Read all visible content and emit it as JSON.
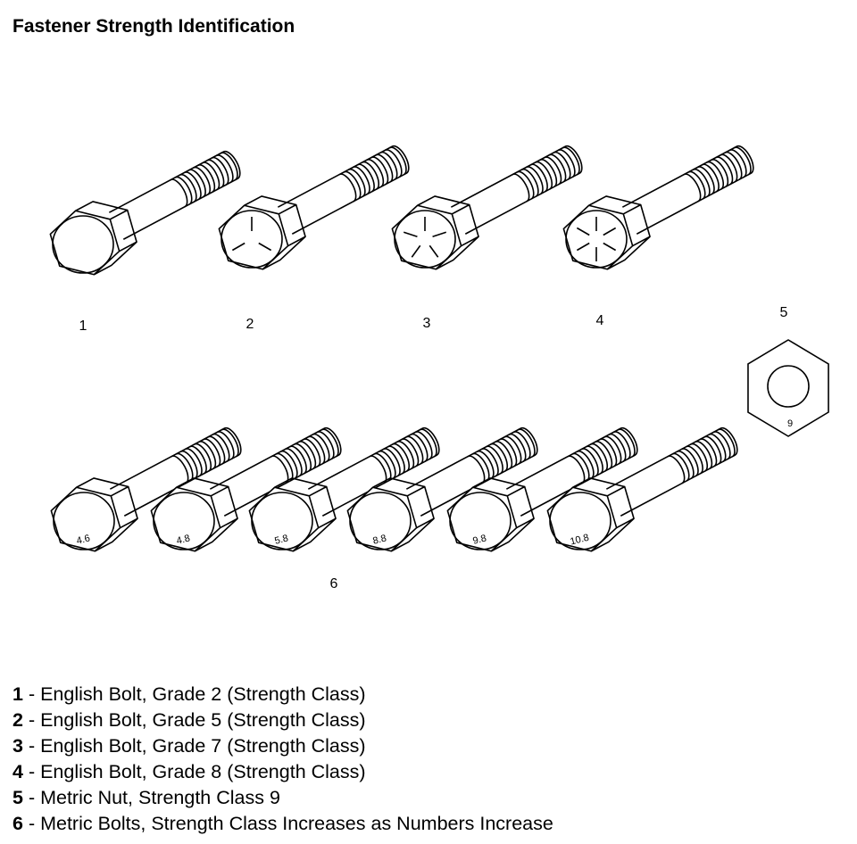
{
  "title": "Fastener Strength Identification",
  "items": [
    {
      "number": "1",
      "description": "English Bolt, Grade 2 (Strength Class)",
      "head": "plain",
      "mark": ""
    },
    {
      "number": "2",
      "description": "English Bolt, Grade 5 (Strength Class)",
      "head": "lines-3",
      "mark": ""
    },
    {
      "number": "3",
      "description": "English Bolt, Grade 7 (Strength Class)",
      "head": "lines-5",
      "mark": ""
    },
    {
      "number": "4",
      "description": "English Bolt, Grade 8 (Strength Class)",
      "head": "lines-6",
      "mark": ""
    },
    {
      "number": "5",
      "description": "Metric Nut, Strength Class 9",
      "head": "nut",
      "mark": "9"
    },
    {
      "number": "6",
      "description": "Metric Bolts, Strength Class Increases as Numbers Increase",
      "head": "metric"
    }
  ],
  "metric_bolt_marks": [
    "4.6",
    "4.8",
    "5.8",
    "8.8",
    "9.8",
    "10.8"
  ],
  "separator": "-"
}
